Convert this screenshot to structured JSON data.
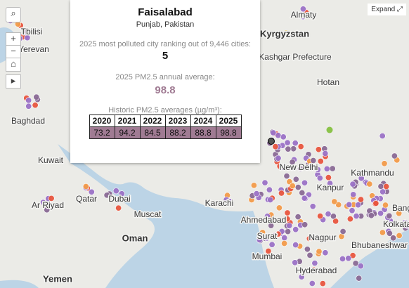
{
  "tooltip": {
    "title": "Faisalabad",
    "subtitle": "Punjab, Pakistan",
    "rank_label": "2025 most polluted city ranking out of 9,446 cities:",
    "rank": 5,
    "pm_label": "2025 PM2.5 annual average:",
    "pm_value": 98.8,
    "historic_label": "Historic PM2.5 averages (µg/m³):",
    "table": {
      "header": [
        2020,
        2021,
        2022,
        2023,
        2024,
        2025
      ],
      "values": [
        73.2,
        94.2,
        84.5,
        88.2,
        88.8,
        98.8
      ]
    }
  },
  "controls": {
    "expand": "Expand"
  },
  "map_labels": [
    "Tbilisi",
    "Yerevan",
    "Baghdad",
    "Kuwait",
    "Ar Riyad",
    "Qatar",
    "Dubai",
    "Muscat",
    "Oman",
    "Yemen",
    "Karachi",
    "Ahmedabad",
    "Surat",
    "Mumbai",
    "Nagpur",
    "Hyderabad",
    "Kathmandu",
    "Kanpur",
    "New Delhi",
    "Kolkata",
    "Bhubaneshwar",
    "Bang",
    "Kashgar Prefecture",
    "Kyrgyzstan",
    "Almaty",
    "Hotan"
  ]
}
